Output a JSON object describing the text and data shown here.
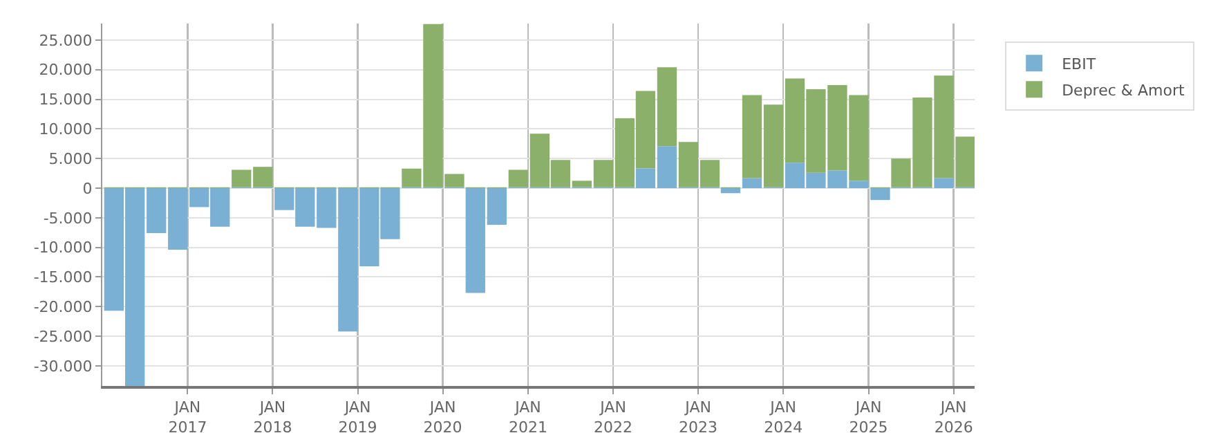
{
  "chart_data": {
    "type": "bar",
    "stacked": true,
    "x": [
      "2016-02-20",
      "2016-05-20",
      "2016-08-20",
      "2016-11-20",
      "2017-02-20",
      "2017-05-20",
      "2017-08-20",
      "2017-11-20",
      "2018-02-20",
      "2018-05-20",
      "2018-08-20",
      "2018-11-20",
      "2019-02-20",
      "2019-05-20",
      "2019-08-20",
      "2019-11-20",
      "2020-02-20",
      "2020-05-20",
      "2020-08-20",
      "2020-11-20",
      "2021-02-20",
      "2021-05-20",
      "2021-08-20",
      "2021-11-20",
      "2022-02-20",
      "2022-05-20",
      "2022-08-20",
      "2022-11-20",
      "2023-02-20",
      "2023-05-20",
      "2023-08-20",
      "2023-11-20",
      "2024-02-20",
      "2024-05-20",
      "2024-08-20",
      "2024-11-20",
      "2025-02-20",
      "2025-05-20",
      "2025-08-20",
      "2025-11-20",
      "2026-02-20"
    ],
    "series": [
      {
        "name": "EBIT",
        "color": "#7ab0d4",
        "values": [
          -20700,
          -33400,
          -7600,
          -10400,
          -3200,
          -6500,
          150,
          150,
          -3700,
          -6500,
          -6700,
          -24200,
          -13200,
          -8600,
          150,
          150,
          150,
          -17700,
          -6200,
          150,
          150,
          150,
          150,
          150,
          150,
          3350,
          7100,
          150,
          150,
          -850,
          1700,
          150,
          4300,
          2600,
          3000,
          1250,
          -2000,
          150,
          150,
          1700,
          150
        ]
      },
      {
        "name": "Deprec & Amort",
        "color": "#8ab06a",
        "values": [
          150,
          150,
          150,
          150,
          150,
          150,
          2950,
          3450,
          150,
          150,
          150,
          150,
          150,
          150,
          3150,
          27550,
          2250,
          150,
          150,
          2950,
          9050,
          4600,
          1100,
          4600,
          11650,
          13050,
          13300,
          7650,
          4600,
          150,
          14000,
          13950,
          14200,
          14100,
          14400,
          14450,
          150,
          4850,
          15150,
          17300,
          8550
        ]
      }
    ],
    "xlim": [
      "2016-01-01",
      "2026-04-01"
    ],
    "xticks": [
      {
        "value": "2017-01-01",
        "label": "JAN\n2017"
      },
      {
        "value": "2018-01-01",
        "label": "JAN\n2018"
      },
      {
        "value": "2019-01-01",
        "label": "JAN\n2019"
      },
      {
        "value": "2020-01-01",
        "label": "JAN\n2020"
      },
      {
        "value": "2021-01-01",
        "label": "JAN\n2021"
      },
      {
        "value": "2022-01-01",
        "label": "JAN\n2022"
      },
      {
        "value": "2023-01-01",
        "label": "JAN\n2023"
      },
      {
        "value": "2024-01-01",
        "label": "JAN\n2024"
      },
      {
        "value": "2025-01-01",
        "label": "JAN\n2025"
      },
      {
        "value": "2026-01-01",
        "label": "JAN\n2026"
      }
    ],
    "ylim": [
      -33400,
      27800
    ],
    "yticks": [
      {
        "value": -30000,
        "label": "-30.000"
      },
      {
        "value": -25000,
        "label": "-25.000"
      },
      {
        "value": -20000,
        "label": "-20.000"
      },
      {
        "value": -15000,
        "label": "-15.000"
      },
      {
        "value": -10000,
        "label": "-10.000"
      },
      {
        "value": -5000,
        "label": "-5.000"
      },
      0,
      {
        "value": 5000,
        "label": "5.000"
      },
      {
        "value": 10000,
        "label": "10.000"
      },
      {
        "value": 15000,
        "label": "15.000"
      },
      {
        "value": 20000,
        "label": "20.000"
      },
      {
        "value": 25000,
        "label": "25.000"
      }
    ],
    "grid": true,
    "legend": "top right"
  }
}
